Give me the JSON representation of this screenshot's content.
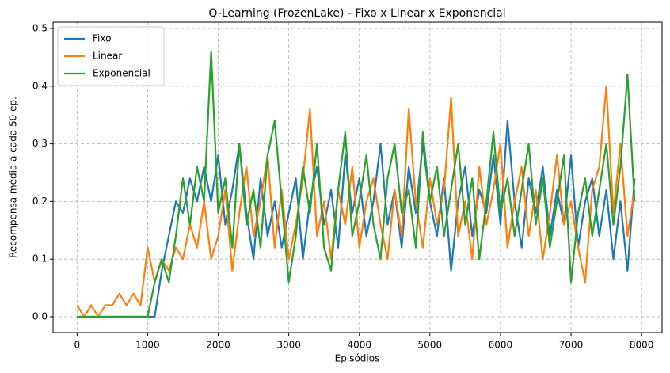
{
  "chart_data": {
    "type": "line",
    "title": "Q-Learning (FrozenLake) - Fixo x Linear x Exponencial",
    "x_label": "Episódios",
    "y_label": "Recompensa média a cada 50 ep.",
    "x": [
      0,
      100,
      200,
      300,
      400,
      500,
      600,
      700,
      800,
      900,
      1000,
      1100,
      1200,
      1300,
      1400,
      1500,
      1600,
      1700,
      1800,
      1900,
      2000,
      2100,
      2200,
      2300,
      2400,
      2500,
      2600,
      2700,
      2800,
      2900,
      3000,
      3100,
      3200,
      3300,
      3400,
      3500,
      3600,
      3700,
      3800,
      3900,
      4000,
      4100,
      4200,
      4300,
      4400,
      4500,
      4600,
      4700,
      4800,
      4900,
      5000,
      5100,
      5200,
      5300,
      5400,
      5500,
      5600,
      5700,
      5800,
      5900,
      6000,
      6100,
      6200,
      6300,
      6400,
      6500,
      6600,
      6700,
      6800,
      6900,
      7000,
      7100,
      7200,
      7300,
      7400,
      7500,
      7600,
      7700,
      7800,
      7900
    ],
    "series": [
      {
        "name": "Fixo",
        "color": "#1f77b4",
        "values": [
          0,
          0,
          0,
          0,
          0,
          0,
          0,
          0,
          0,
          0,
          0,
          0,
          0.08,
          0.14,
          0.2,
          0.18,
          0.24,
          0.2,
          0.26,
          0.2,
          0.28,
          0.16,
          0.22,
          0.3,
          0.18,
          0.1,
          0.24,
          0.14,
          0.2,
          0.12,
          0.18,
          0.24,
          0.1,
          0.2,
          0.26,
          0.16,
          0.22,
          0.12,
          0.28,
          0.18,
          0.24,
          0.14,
          0.2,
          0.3,
          0.16,
          0.22,
          0.12,
          0.26,
          0.18,
          0.3,
          0.2,
          0.14,
          0.24,
          0.08,
          0.2,
          0.26,
          0.14,
          0.22,
          0.18,
          0.28,
          0.16,
          0.34,
          0.2,
          0.12,
          0.24,
          0.18,
          0.26,
          0.14,
          0.22,
          0.16,
          0.28,
          0.12,
          0.2,
          0.24,
          0.14,
          0.22,
          0.1,
          0.2,
          0.08,
          0.24
        ]
      },
      {
        "name": "Linear",
        "color": "#ff7f0e",
        "values": [
          0.02,
          0,
          0.02,
          0,
          0.02,
          0.02,
          0.04,
          0.02,
          0.04,
          0.02,
          0.12,
          0.06,
          0.1,
          0.08,
          0.12,
          0.1,
          0.16,
          0.12,
          0.2,
          0.1,
          0.14,
          0.22,
          0.08,
          0.18,
          0.26,
          0.14,
          0.2,
          0.28,
          0.12,
          0.22,
          0.1,
          0.16,
          0.24,
          0.36,
          0.14,
          0.2,
          0.1,
          0.22,
          0.16,
          0.26,
          0.12,
          0.2,
          0.24,
          0.16,
          0.1,
          0.22,
          0.14,
          0.36,
          0.2,
          0.12,
          0.24,
          0.16,
          0.22,
          0.38,
          0.14,
          0.2,
          0.1,
          0.26,
          0.16,
          0.22,
          0.3,
          0.12,
          0.2,
          0.26,
          0.14,
          0.22,
          0.1,
          0.18,
          0.28,
          0.16,
          0.2,
          0.12,
          0.06,
          0.22,
          0.26,
          0.4,
          0.18,
          0.3,
          0.14,
          0.22
        ]
      },
      {
        "name": "Exponencial",
        "color": "#2ca02c",
        "values": [
          0,
          0,
          0,
          0,
          0,
          0,
          0,
          0,
          0,
          0,
          0,
          0.06,
          0.1,
          0.06,
          0.14,
          0.24,
          0.16,
          0.26,
          0.2,
          0.46,
          0.18,
          0.24,
          0.12,
          0.3,
          0.16,
          0.22,
          0.12,
          0.28,
          0.34,
          0.2,
          0.06,
          0.14,
          0.26,
          0.18,
          0.3,
          0.12,
          0.08,
          0.22,
          0.32,
          0.14,
          0.2,
          0.28,
          0.16,
          0.1,
          0.24,
          0.3,
          0.18,
          0.22,
          0.12,
          0.32,
          0.2,
          0.26,
          0.14,
          0.22,
          0.3,
          0.16,
          0.24,
          0.1,
          0.2,
          0.32,
          0.18,
          0.24,
          0.14,
          0.22,
          0.3,
          0.16,
          0.24,
          0.12,
          0.2,
          0.28,
          0.06,
          0.18,
          0.24,
          0.14,
          0.22,
          0.3,
          0.16,
          0.26,
          0.42,
          0.2
        ]
      }
    ],
    "xlim": [
      -340,
      8290
    ],
    "ylim": [
      -0.0275,
      0.511
    ],
    "xticks": [
      0,
      1000,
      2000,
      3000,
      4000,
      5000,
      6000,
      7000,
      8000
    ],
    "yticks": [
      {
        "value": 0,
        "label": "0.0"
      },
      0.1,
      0.2,
      0.3,
      0.4,
      0.5
    ],
    "grid": true,
    "legend": "upper left"
  }
}
